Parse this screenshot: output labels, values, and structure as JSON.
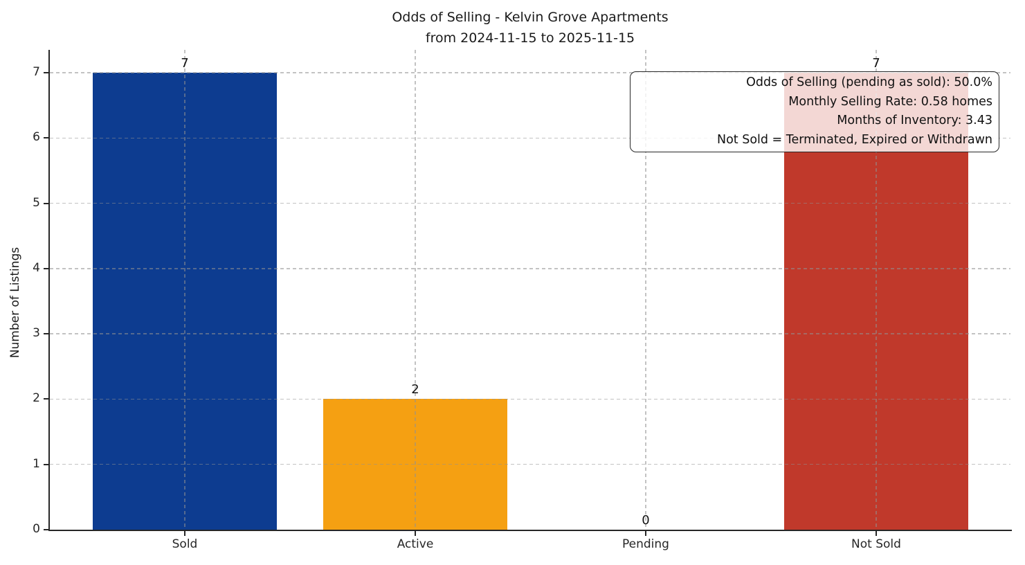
{
  "chart_data": {
    "type": "bar",
    "title": "Odds of Selling - Kelvin Grove Apartments",
    "subtitle": "from 2024-11-15 to 2025-11-15",
    "categories": [
      "Sold",
      "Active",
      "Pending",
      "Not Sold"
    ],
    "values": [
      7,
      2,
      0,
      7
    ],
    "bar_colors": [
      "#0d3c90",
      "#f5a012",
      null,
      "#c0392b"
    ],
    "value_labels": [
      "7",
      "2",
      "0",
      "7"
    ],
    "xlabel": "",
    "ylabel": "Number of Listings",
    "yticks": [
      0,
      1,
      2,
      3,
      4,
      5,
      6,
      7
    ],
    "ylim": [
      0,
      7.35
    ],
    "grid": "dashed light-gray, horizontal and vertical, drawn over bars",
    "legend": "none",
    "annotation": {
      "position": "top-right",
      "lines": [
        "Odds of Selling (pending as sold): 50.0%",
        "Monthly Selling Rate: 0.58 homes",
        "Months of Inventory: 3.43",
        "Not Sold = Terminated, Expired or Withdrawn"
      ]
    },
    "colors": {
      "sold_bar": "#0d3c90",
      "active_bar": "#f5a012",
      "not_sold_bar": "#c0392b",
      "spine": "#262626",
      "gridline": "#c9c9c9",
      "text": "#1a1a1a",
      "annotation_bg": "rgba(255,255,255,0.8)"
    }
  }
}
